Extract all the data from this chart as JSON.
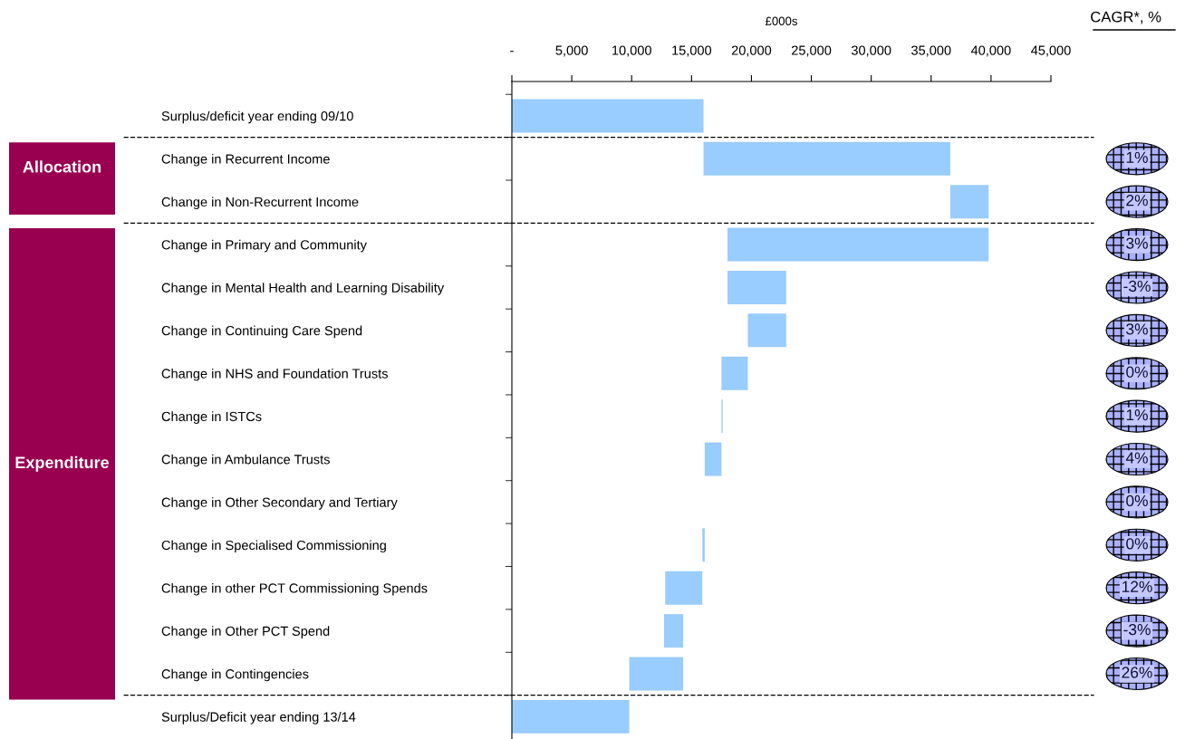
{
  "chart_data": {
    "type": "bar",
    "orientation": "horizontal",
    "xlabel": "£000s",
    "categories": [
      "Surplus/deficit year ending 09/10",
      "Change in Recurrent Income",
      "Change in Non-Recurrent Income",
      "Change in Primary and Community",
      "Change in Mental Health and Learning Disability",
      "Change in Continuing Care Spend",
      "Change in NHS and Foundation Trusts",
      "Change in ISTCs",
      "Change in Ambulance Trusts",
      "Change in Other Secondary and Tertiary",
      "Change in Specialised Commissioning",
      "Change in other PCT Commissioning Spends",
      "Change in Other PCT Spend",
      "Change in Contingencies",
      "Surplus/Deficit year ending 13/14"
    ],
    "base": [
      0,
      16000,
      36600,
      18000,
      18000,
      19700,
      17500,
      17500,
      16100,
      null,
      15900,
      12800,
      12700,
      9800,
      0
    ],
    "values": [
      16000,
      20600,
      3200,
      21800,
      4900,
      3200,
      2200,
      100,
      1400,
      null,
      200,
      3100,
      1600,
      4500,
      9800
    ],
    "color": "#99ccff",
    "xlim": [
      0,
      45000
    ],
    "xticks": [
      {
        "value": 0,
        "label": "-"
      },
      {
        "value": 5000,
        "label": "5,000"
      },
      {
        "value": 10000,
        "label": "10,000"
      },
      {
        "value": 15000,
        "label": "15,000"
      },
      {
        "value": 20000,
        "label": "20,000"
      },
      {
        "value": 25000,
        "label": "25,000"
      },
      {
        "value": 30000,
        "label": "30,000"
      },
      {
        "value": 35000,
        "label": "35,000"
      },
      {
        "value": 40000,
        "label": "40,000"
      },
      {
        "value": 45000,
        "label": "45,000"
      }
    ],
    "annotations": [
      "CAGR*, %",
      "Allocation",
      "Expenditure",
      "1%",
      "2%",
      "3%",
      "-3%",
      "3%",
      "0%",
      "1%",
      "4%",
      "0%",
      "0%",
      "12%",
      "-3%",
      "26%"
    ],
    "grid": false,
    "legend": false
  }
}
